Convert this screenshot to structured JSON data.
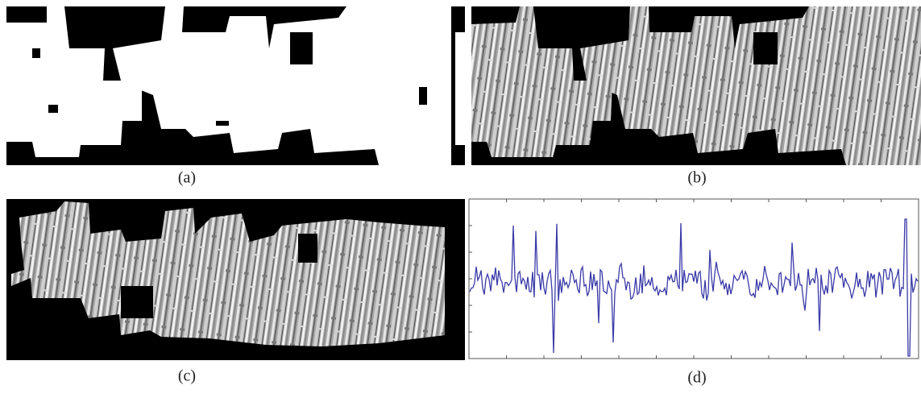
{
  "captions": {
    "a": "(a)",
    "b": "(b)",
    "c": "(c)",
    "d": "(d)"
  }
}
